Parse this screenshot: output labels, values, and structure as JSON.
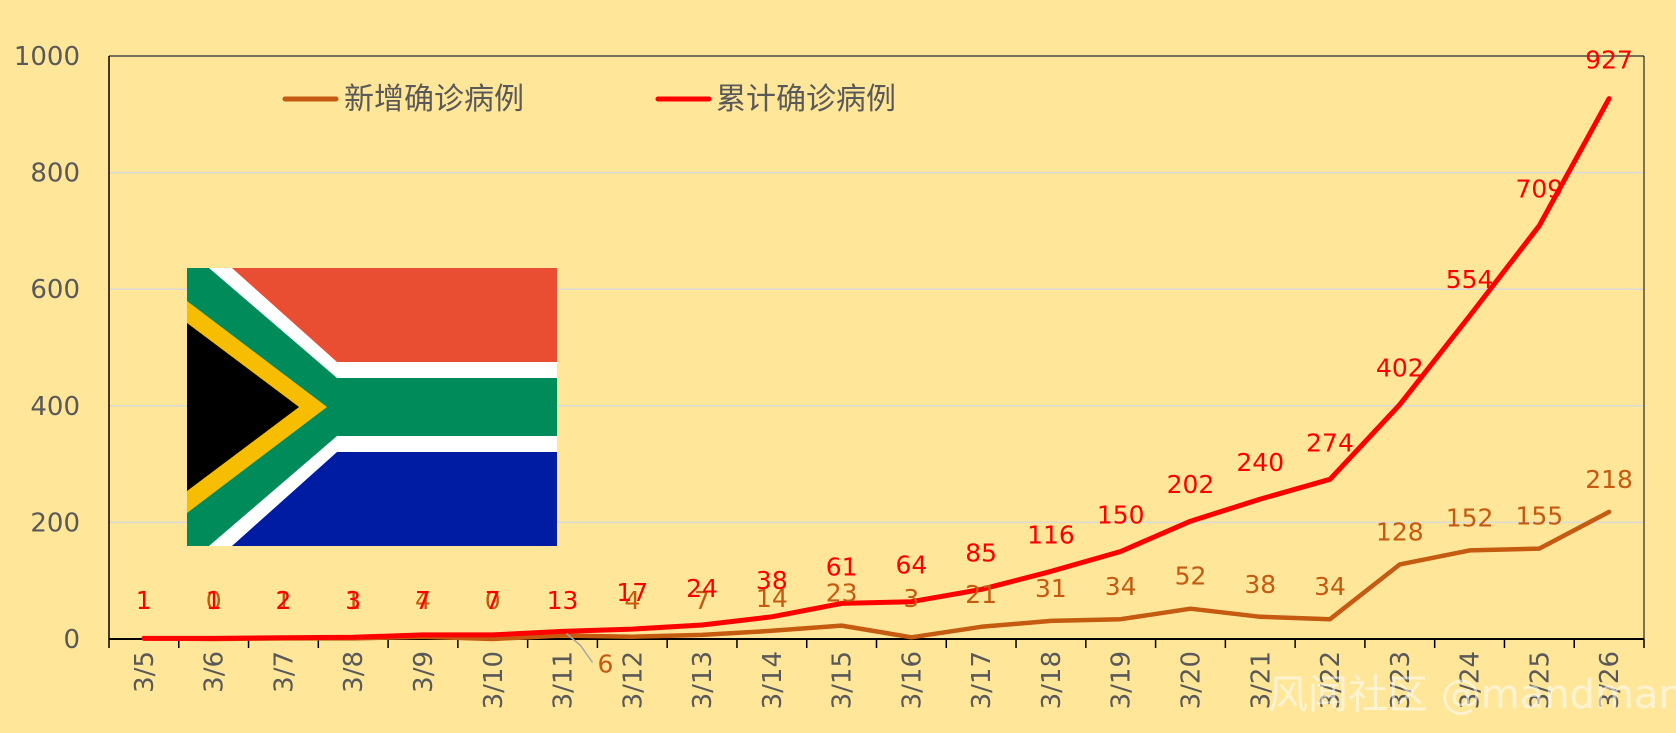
{
  "chart_data": {
    "type": "line",
    "categories": [
      "3/5",
      "3/6",
      "3/7",
      "3/8",
      "3/9",
      "3/10",
      "3/11",
      "3/12",
      "3/13",
      "3/14",
      "3/15",
      "3/16",
      "3/17",
      "3/18",
      "3/19",
      "3/20",
      "3/21",
      "3/22",
      "3/23",
      "3/24",
      "3/25",
      "3/26"
    ],
    "series": [
      {
        "name": "新增确诊病例",
        "color": "#C55A11",
        "values": [
          1,
          0,
          1,
          1,
          4,
          0,
          6,
          4,
          7,
          14,
          23,
          3,
          21,
          31,
          34,
          52,
          38,
          34,
          128,
          152,
          155,
          218
        ]
      },
      {
        "name": "累计确诊病例",
        "color": "#FF0000",
        "values": [
          1,
          1,
          2,
          3,
          7,
          7,
          13,
          17,
          24,
          38,
          61,
          64,
          85,
          116,
          150,
          202,
          240,
          274,
          402,
          554,
          709,
          927
        ]
      }
    ],
    "ylim": [
      0,
      1000
    ],
    "yticks": [
      0,
      200,
      400,
      600,
      800,
      1000
    ],
    "grid": true,
    "legend_position": "top-left",
    "title": "",
    "xlabel": "",
    "ylabel": ""
  },
  "watermark": "风闻社区 @mandman",
  "flag_icon": "south-africa-flag-icon",
  "colors": {
    "background": "#FFE699",
    "gridline": "#D9D9D9",
    "new_cases": "#C55A11",
    "cumulative": "#FF0000"
  }
}
